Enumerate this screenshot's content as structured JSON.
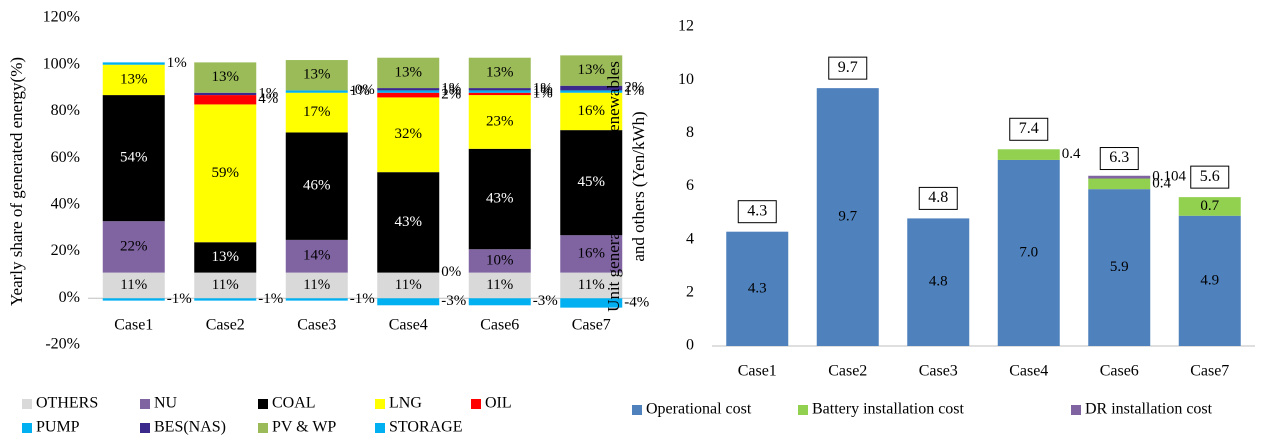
{
  "chart_data": [
    {
      "type": "bar",
      "stacked": true,
      "grid": false,
      "ylabel": [
        "Yearly share of generated energy(%)"
      ],
      "categories": [
        "Case1",
        "Case2",
        "Case3",
        "Case4",
        "Case6",
        "Case7"
      ],
      "ylim": [
        -20,
        120
      ],
      "yticks": [
        {
          "value": -20,
          "label": "-20%"
        },
        {
          "value": 0,
          "label": "0%"
        },
        {
          "value": 20,
          "label": "20%"
        },
        {
          "value": 40,
          "label": "40%"
        },
        {
          "value": 60,
          "label": "60%"
        },
        {
          "value": 80,
          "label": "80%"
        },
        {
          "value": 100,
          "label": "100%"
        },
        {
          "value": 120,
          "label": "120%"
        }
      ],
      "series": [
        {
          "name": "OTHERS",
          "color": "#d9d9d9",
          "values": [
            11,
            11,
            11,
            11,
            11,
            11
          ],
          "value_labels": [
            "11%",
            "11%",
            "11%",
            "11%",
            "11%",
            "11%"
          ]
        },
        {
          "name": "NU",
          "color": "#8064a2",
          "values": [
            22,
            0,
            14,
            0,
            10,
            16
          ],
          "value_labels": [
            "22%",
            null,
            "14%",
            "0%",
            "10%",
            "16%"
          ]
        },
        {
          "name": "COAL",
          "color": "#000000",
          "values": [
            54,
            13,
            46,
            43,
            43,
            45
          ],
          "value_labels": [
            "54%",
            "13%",
            "46%",
            "43%",
            "43%",
            "45%"
          ]
        },
        {
          "name": "LNG",
          "color": "#ffff00",
          "values": [
            13,
            59,
            17,
            32,
            23,
            16
          ],
          "value_labels": [
            "13%",
            "59%",
            "17%",
            "32%",
            "23%",
            "16%"
          ]
        },
        {
          "name": "OIL",
          "color": "#ff0000",
          "values": [
            0,
            4,
            0,
            2,
            1,
            0
          ],
          "value_labels": [
            null,
            "4%",
            null,
            "2%",
            "1%",
            null
          ]
        },
        {
          "name": "PUMP",
          "color": "#00b0f0",
          "values": [
            1,
            0,
            1,
            1,
            1,
            1
          ],
          "value_labels": [
            "1%",
            null,
            "1%",
            "1%",
            "1%",
            "1%"
          ]
        },
        {
          "name": "BES(NAS)",
          "color": "#3b2a8c",
          "values": [
            0,
            1,
            0,
            1,
            1,
            2
          ],
          "value_labels": [
            null,
            "1%",
            "-0%",
            "1%",
            "1%",
            "2%"
          ]
        },
        {
          "name": "PV & WP",
          "color": "#9bbb59",
          "values": [
            0,
            13,
            13,
            13,
            13,
            13
          ],
          "value_labels": [
            null,
            "13%",
            "13%",
            "13%",
            "13%",
            "13%"
          ]
        },
        {
          "name": "STORAGE",
          "color": "#00b0f0",
          "values": [
            -1,
            -1,
            -1,
            -3,
            -3,
            -4
          ],
          "value_labels": [
            "-1%",
            "-1%",
            "-1%",
            "-3%",
            "-3%",
            "-4%"
          ]
        }
      ]
    },
    {
      "type": "bar",
      "stacked": true,
      "grid": false,
      "ylabel": [
        "Unit generation cost exc. renewables",
        "and others (Yen/kWh)"
      ],
      "categories": [
        "Case1",
        "Case2",
        "Case3",
        "Case4",
        "Case6",
        "Case7"
      ],
      "ylim": [
        0,
        12
      ],
      "yticks": [
        0,
        2,
        4,
        6,
        8,
        10,
        12
      ],
      "series": [
        {
          "name": "Operational cost",
          "color": "#4f81bd",
          "values": [
            4.3,
            9.7,
            4.8,
            7.0,
            5.9,
            4.9
          ],
          "value_labels": [
            "4.3",
            "9.7",
            "4.8",
            "7.0",
            "5.9",
            "4.9"
          ]
        },
        {
          "name": "Battery installation cost",
          "color": "#92d050",
          "values": [
            0,
            0,
            0,
            0.4,
            0.4,
            0.7
          ],
          "value_labels": [
            null,
            null,
            null,
            "0.4",
            "0.4",
            "0.7"
          ]
        },
        {
          "name": "DR installation cost",
          "color": "#8064a2",
          "values": [
            0,
            0,
            0,
            0,
            0.104,
            0
          ],
          "value_labels": [
            null,
            null,
            null,
            null,
            "0.104",
            null
          ]
        }
      ],
      "totals": [
        4.3,
        9.7,
        4.8,
        7.4,
        6.3,
        5.6
      ]
    }
  ]
}
